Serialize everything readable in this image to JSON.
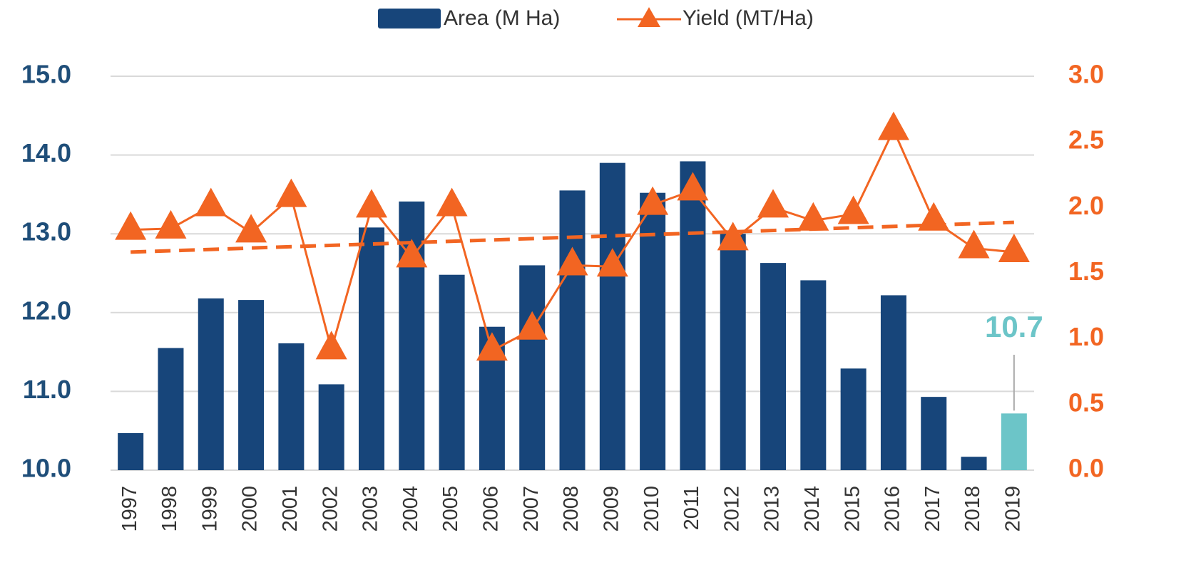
{
  "chart_data": {
    "type": "bar_line",
    "categories": [
      "1997",
      "1998",
      "1999",
      "2000",
      "2001",
      "2002",
      "2003",
      "2004",
      "2005",
      "2006",
      "2007",
      "2008",
      "2009",
      "2010",
      "2011",
      "2012",
      "2013",
      "2014",
      "2015",
      "2016",
      "2017",
      "2018",
      "2019"
    ],
    "series": [
      {
        "name": "Area (M Ha)",
        "type": "bar",
        "color": "#17457a",
        "point_colors": [
          null,
          null,
          null,
          null,
          null,
          null,
          null,
          null,
          null,
          null,
          null,
          null,
          null,
          null,
          null,
          null,
          null,
          null,
          null,
          null,
          null,
          null,
          "#6cc5c8"
        ],
        "values": [
          10.47,
          11.55,
          12.18,
          12.16,
          11.61,
          11.09,
          13.08,
          13.41,
          12.48,
          11.82,
          12.6,
          13.55,
          13.9,
          13.52,
          13.92,
          13.0,
          12.63,
          12.41,
          11.29,
          12.22,
          10.93,
          10.17,
          10.72
        ],
        "value_labels": [
          null,
          null,
          null,
          null,
          null,
          null,
          null,
          null,
          null,
          null,
          null,
          null,
          null,
          null,
          null,
          null,
          null,
          null,
          null,
          null,
          null,
          null,
          "10.7"
        ]
      },
      {
        "name": "Yield (MT/Ha)",
        "type": "line",
        "axis": "y2",
        "color": "#f26522",
        "marker": "triangle",
        "trendline": true,
        "values": [
          1.83,
          1.84,
          2.01,
          1.81,
          2.08,
          0.92,
          2.0,
          1.62,
          2.01,
          0.91,
          1.07,
          1.56,
          1.55,
          2.02,
          2.13,
          1.75,
          2.0,
          1.9,
          1.95,
          2.59,
          1.9,
          1.69,
          1.66
        ]
      }
    ],
    "ylim": [
      10,
      15
    ],
    "yticks": [
      {
        "value": 10,
        "label": "10.0"
      },
      {
        "value": 11,
        "label": "11.0"
      },
      {
        "value": 12,
        "label": "12.0"
      },
      {
        "value": 13,
        "label": "13.0"
      },
      {
        "value": 14,
        "label": "14.0"
      },
      {
        "value": 15,
        "label": "15.0"
      }
    ],
    "y2lim": [
      0,
      3
    ],
    "y2ticks": [
      {
        "value": 0,
        "label": "0.0"
      },
      {
        "value": 0.5,
        "label": "0.5"
      },
      {
        "value": 1,
        "label": "1.0"
      },
      {
        "value": 1.5,
        "label": "1.5"
      },
      {
        "value": 2,
        "label": "2.0"
      },
      {
        "value": 2.5,
        "label": "2.5"
      },
      {
        "value": 3,
        "label": "3.0"
      }
    ],
    "grid": true,
    "legend": "top"
  }
}
